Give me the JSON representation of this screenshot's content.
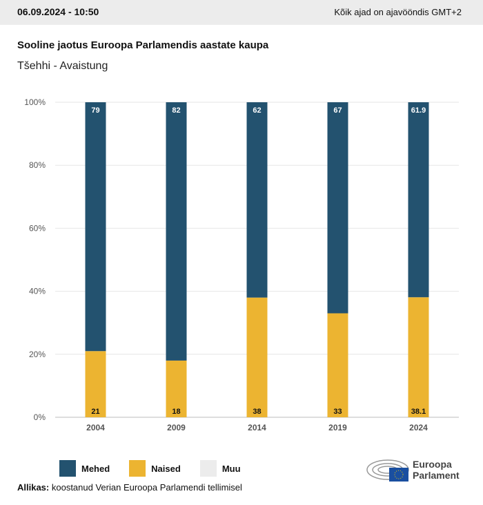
{
  "header": {
    "date": "06.09.2024 - 10:50",
    "timezone": "Kõik ajad on ajavööndis GMT+2"
  },
  "chart_data": {
    "type": "bar",
    "stacked": true,
    "title": "Sooline jaotus Euroopa Parlamendis aastate kaupa",
    "subtitle": "Tšehhi - Avaistung",
    "categories": [
      "2004",
      "2009",
      "2014",
      "2019",
      "2024"
    ],
    "series": [
      {
        "name": "Naised",
        "color": "#ecb431",
        "values": [
          21,
          18,
          38,
          33,
          38.1
        ]
      },
      {
        "name": "Mehed",
        "color": "#23526f",
        "values": [
          79,
          82,
          62,
          67,
          61.9
        ]
      },
      {
        "name": "Muu",
        "color": "#ececec",
        "values": [
          0,
          0,
          0,
          0,
          0
        ]
      }
    ],
    "ylim": [
      0,
      100
    ],
    "yticks": [
      "0%",
      "20%",
      "40%",
      "60%",
      "80%",
      "100%"
    ],
    "legend_position": "bottom-left"
  },
  "legend": [
    "Mehed",
    "Naised",
    "Muu"
  ],
  "source": {
    "label": "Allikas:",
    "text": " koostanud Verian Euroopa Parlamendi tellimisel"
  },
  "logo": {
    "line1": "Euroopa",
    "line2": "Parlament"
  }
}
